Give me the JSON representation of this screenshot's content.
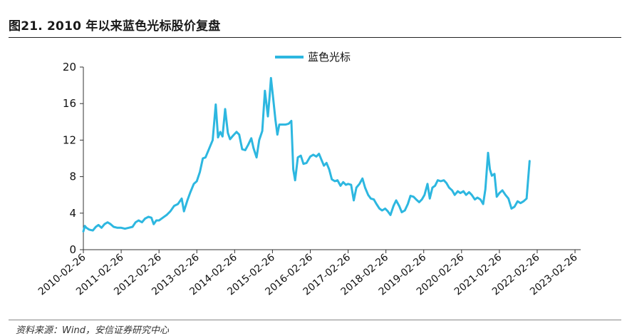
{
  "figure": {
    "title": "图21. 2010 年以来蓝色光标股价复盘",
    "source": "资料来源：Wind，安信证券研究中心"
  },
  "colors": {
    "series": "#2db7e0",
    "axis": "#333333"
  },
  "chart_data": {
    "type": "line",
    "title": "",
    "xlabel": "",
    "ylabel": "",
    "ylim": [
      0,
      20
    ],
    "yticks": [
      0,
      4,
      8,
      12,
      16,
      20
    ],
    "xlim": [
      2010.0,
      2023.15
    ],
    "xticks": [
      {
        "x": 2010.0,
        "label": "2010-02-26"
      },
      {
        "x": 2011.0,
        "label": "2011-02-26"
      },
      {
        "x": 2012.0,
        "label": "2012-02-26"
      },
      {
        "x": 2013.0,
        "label": "2013-02-26"
      },
      {
        "x": 2014.0,
        "label": "2014-02-26"
      },
      {
        "x": 2015.0,
        "label": "2015-02-26"
      },
      {
        "x": 2016.0,
        "label": "2016-02-26"
      },
      {
        "x": 2017.0,
        "label": "2017-02-26"
      },
      {
        "x": 2018.0,
        "label": "2018-02-26"
      },
      {
        "x": 2019.0,
        "label": "2019-02-26"
      },
      {
        "x": 2020.0,
        "label": "2020-02-26"
      },
      {
        "x": 2021.0,
        "label": "2021-02-26"
      },
      {
        "x": 2022.0,
        "label": "2022-02-26"
      },
      {
        "x": 2023.0,
        "label": "2023-02-26"
      }
    ],
    "legend": {
      "position": "top-center"
    },
    "series": [
      {
        "name": "蓝色光标",
        "points": [
          [
            2010.0,
            2.0
          ],
          [
            2010.04,
            2.6
          ],
          [
            2010.08,
            2.4
          ],
          [
            2010.15,
            2.2
          ],
          [
            2010.25,
            2.1
          ],
          [
            2010.33,
            2.5
          ],
          [
            2010.4,
            2.7
          ],
          [
            2010.48,
            2.4
          ],
          [
            2010.56,
            2.8
          ],
          [
            2010.64,
            3.0
          ],
          [
            2010.72,
            2.8
          ],
          [
            2010.8,
            2.5
          ],
          [
            2010.9,
            2.4
          ],
          [
            2011.0,
            2.4
          ],
          [
            2011.1,
            2.3
          ],
          [
            2011.2,
            2.4
          ],
          [
            2011.3,
            2.5
          ],
          [
            2011.38,
            3.0
          ],
          [
            2011.46,
            3.2
          ],
          [
            2011.55,
            3.0
          ],
          [
            2011.63,
            3.4
          ],
          [
            2011.72,
            3.6
          ],
          [
            2011.8,
            3.5
          ],
          [
            2011.86,
            2.8
          ],
          [
            2011.93,
            3.2
          ],
          [
            2012.0,
            3.2
          ],
          [
            2012.1,
            3.5
          ],
          [
            2012.2,
            3.8
          ],
          [
            2012.3,
            4.2
          ],
          [
            2012.4,
            4.8
          ],
          [
            2012.5,
            5.0
          ],
          [
            2012.6,
            5.6
          ],
          [
            2012.66,
            4.2
          ],
          [
            2012.75,
            5.4
          ],
          [
            2012.83,
            6.3
          ],
          [
            2012.92,
            7.2
          ],
          [
            2013.0,
            7.5
          ],
          [
            2013.08,
            8.5
          ],
          [
            2013.16,
            10.0
          ],
          [
            2013.23,
            10.1
          ],
          [
            2013.32,
            11.0
          ],
          [
            2013.42,
            12.0
          ],
          [
            2013.5,
            15.9
          ],
          [
            2013.56,
            12.3
          ],
          [
            2013.62,
            12.9
          ],
          [
            2013.68,
            12.4
          ],
          [
            2013.75,
            15.4
          ],
          [
            2013.82,
            12.8
          ],
          [
            2013.88,
            12.1
          ],
          [
            2013.96,
            12.5
          ],
          [
            2014.05,
            12.9
          ],
          [
            2014.12,
            12.6
          ],
          [
            2014.2,
            11.0
          ],
          [
            2014.28,
            10.9
          ],
          [
            2014.36,
            11.5
          ],
          [
            2014.44,
            12.2
          ],
          [
            2014.5,
            11.1
          ],
          [
            2014.58,
            10.1
          ],
          [
            2014.65,
            12.0
          ],
          [
            2014.73,
            13.0
          ],
          [
            2014.8,
            17.4
          ],
          [
            2014.84,
            16.0
          ],
          [
            2014.88,
            14.6
          ],
          [
            2014.92,
            16.6
          ],
          [
            2014.96,
            18.8
          ],
          [
            2015.02,
            16.5
          ],
          [
            2015.08,
            14.2
          ],
          [
            2015.13,
            12.6
          ],
          [
            2015.18,
            13.7
          ],
          [
            2015.26,
            13.7
          ],
          [
            2015.35,
            13.7
          ],
          [
            2015.43,
            13.8
          ],
          [
            2015.5,
            14.1
          ],
          [
            2015.55,
            8.8
          ],
          [
            2015.6,
            7.6
          ],
          [
            2015.67,
            10.1
          ],
          [
            2015.75,
            10.3
          ],
          [
            2015.82,
            9.4
          ],
          [
            2015.9,
            9.5
          ],
          [
            2016.0,
            10.2
          ],
          [
            2016.08,
            10.4
          ],
          [
            2016.16,
            10.2
          ],
          [
            2016.23,
            10.5
          ],
          [
            2016.3,
            9.8
          ],
          [
            2016.36,
            9.2
          ],
          [
            2016.43,
            9.5
          ],
          [
            2016.5,
            8.8
          ],
          [
            2016.57,
            7.7
          ],
          [
            2016.65,
            7.5
          ],
          [
            2016.72,
            7.6
          ],
          [
            2016.8,
            7.0
          ],
          [
            2016.87,
            7.4
          ],
          [
            2016.94,
            7.1
          ],
          [
            2017.0,
            7.2
          ],
          [
            2017.08,
            7.1
          ],
          [
            2017.15,
            5.4
          ],
          [
            2017.22,
            6.8
          ],
          [
            2017.3,
            7.2
          ],
          [
            2017.38,
            7.8
          ],
          [
            2017.45,
            6.8
          ],
          [
            2017.53,
            6.0
          ],
          [
            2017.6,
            5.6
          ],
          [
            2017.68,
            5.5
          ],
          [
            2017.75,
            5.0
          ],
          [
            2017.83,
            4.5
          ],
          [
            2017.9,
            4.3
          ],
          [
            2017.98,
            4.5
          ],
          [
            2018.05,
            4.2
          ],
          [
            2018.12,
            3.8
          ],
          [
            2018.2,
            4.8
          ],
          [
            2018.27,
            5.4
          ],
          [
            2018.35,
            4.8
          ],
          [
            2018.42,
            4.1
          ],
          [
            2018.5,
            4.3
          ],
          [
            2018.58,
            5.0
          ],
          [
            2018.65,
            5.9
          ],
          [
            2018.73,
            5.8
          ],
          [
            2018.8,
            5.5
          ],
          [
            2018.88,
            5.2
          ],
          [
            2018.95,
            5.5
          ],
          [
            2019.02,
            6.0
          ],
          [
            2019.1,
            7.2
          ],
          [
            2019.16,
            5.6
          ],
          [
            2019.23,
            6.8
          ],
          [
            2019.3,
            7.0
          ],
          [
            2019.37,
            7.6
          ],
          [
            2019.45,
            7.5
          ],
          [
            2019.53,
            7.6
          ],
          [
            2019.6,
            7.3
          ],
          [
            2019.67,
            6.8
          ],
          [
            2019.75,
            6.5
          ],
          [
            2019.82,
            6.0
          ],
          [
            2019.9,
            6.4
          ],
          [
            2019.97,
            6.2
          ],
          [
            2020.05,
            6.4
          ],
          [
            2020.12,
            6.0
          ],
          [
            2020.2,
            6.3
          ],
          [
            2020.27,
            6.0
          ],
          [
            2020.35,
            5.5
          ],
          [
            2020.42,
            5.7
          ],
          [
            2020.5,
            5.5
          ],
          [
            2020.57,
            5.0
          ],
          [
            2020.63,
            6.6
          ],
          [
            2020.7,
            10.6
          ],
          [
            2020.75,
            8.8
          ],
          [
            2020.8,
            8.1
          ],
          [
            2020.87,
            8.3
          ],
          [
            2020.93,
            5.8
          ],
          [
            2021.0,
            6.2
          ],
          [
            2021.08,
            6.5
          ],
          [
            2021.16,
            6.0
          ],
          [
            2021.24,
            5.6
          ],
          [
            2021.32,
            4.5
          ],
          [
            2021.4,
            4.7
          ],
          [
            2021.48,
            5.3
          ],
          [
            2021.56,
            5.1
          ],
          [
            2021.64,
            5.3
          ],
          [
            2021.72,
            5.6
          ],
          [
            2021.8,
            9.7
          ]
        ]
      }
    ]
  }
}
